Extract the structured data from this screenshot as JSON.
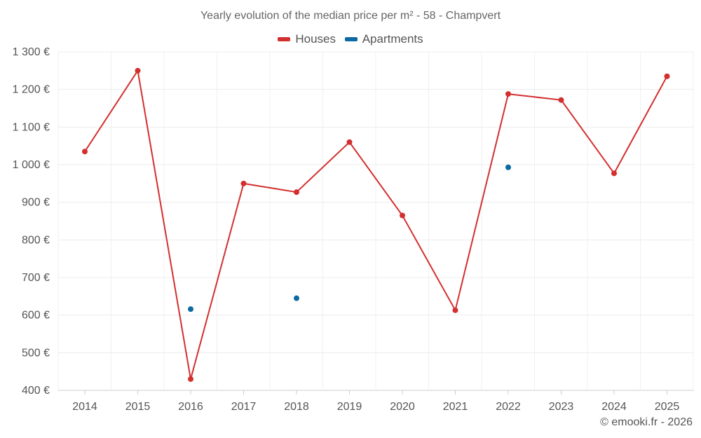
{
  "chart_data": {
    "type": "line",
    "title": "Yearly evolution of the median price per m² - 58 - Champvert",
    "categories": [
      "2014",
      "2015",
      "2016",
      "2017",
      "2018",
      "2019",
      "2020",
      "2021",
      "2022",
      "2023",
      "2024",
      "2025"
    ],
    "series": [
      {
        "name": "Houses",
        "color": "#d32f2f",
        "connect": true,
        "values": [
          1035,
          1250,
          430,
          950,
          927,
          1060,
          865,
          613,
          1188,
          1172,
          977,
          1235
        ]
      },
      {
        "name": "Apartments",
        "color": "#0b6aa2",
        "connect": false,
        "values": [
          null,
          null,
          616,
          null,
          645,
          null,
          null,
          null,
          993,
          null,
          null,
          null
        ]
      }
    ],
    "y_ticks": [
      400,
      500,
      600,
      700,
      800,
      900,
      1000,
      1100,
      1200,
      1300
    ],
    "y_tick_labels": [
      "400 €",
      "500 €",
      "600 €",
      "700 €",
      "800 €",
      "900 €",
      "1 000 €",
      "1 100 €",
      "1 200 €",
      "1 300 €"
    ],
    "ylim": [
      400,
      1300
    ],
    "xlabel": "",
    "ylabel": "",
    "grid": true,
    "legend_position": "top-center"
  },
  "copyright": "© emooki.fr - 2026"
}
